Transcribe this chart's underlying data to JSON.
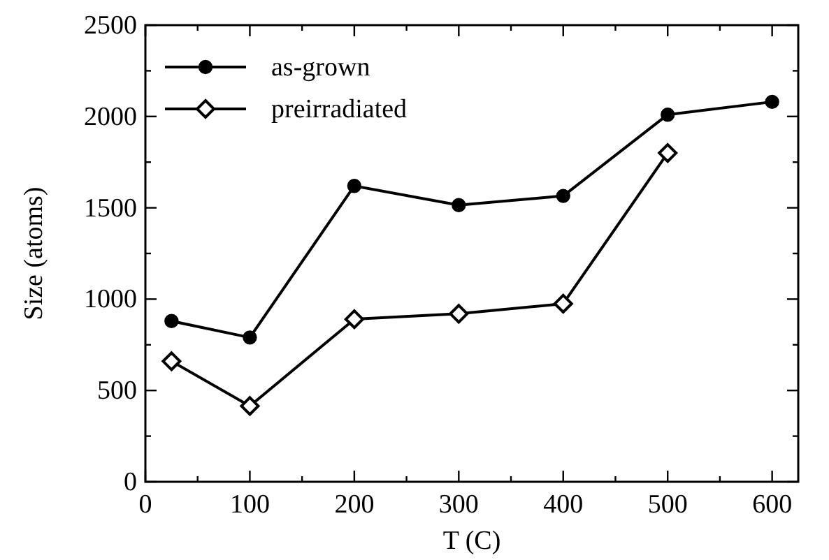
{
  "chart_data": {
    "type": "line",
    "xlabel": "T (C)",
    "ylabel": "Size (atoms)",
    "xlim": [
      0,
      625
    ],
    "ylim": [
      0,
      2500
    ],
    "xticks": [
      0,
      {
        "value": 50,
        "label": null
      },
      100,
      {
        "value": 150,
        "label": null
      },
      200,
      {
        "value": 250,
        "label": null
      },
      300,
      {
        "value": 350,
        "label": null
      },
      400,
      {
        "value": 450,
        "label": null
      },
      500,
      {
        "value": 550,
        "label": null
      },
      600
    ],
    "yticks": [
      0,
      {
        "value": 250,
        "label": null
      },
      500,
      {
        "value": 750,
        "label": null
      },
      1000,
      {
        "value": 1250,
        "label": null
      },
      1500,
      {
        "value": 1750,
        "label": null
      },
      2000,
      {
        "value": 2250,
        "label": null
      },
      2500
    ],
    "legend": "top left",
    "grid": false,
    "line_style": "solid",
    "series": [
      {
        "name": "as-grown",
        "color": "#000000",
        "marker": "circle",
        "x": [
          25,
          100,
          200,
          300,
          400,
          500,
          600
        ],
        "values": [
          880,
          790,
          1620,
          1515,
          1565,
          2010,
          2080
        ]
      },
      {
        "name": "preirradiated",
        "color": "#000000",
        "marker": "diamond",
        "x": [
          25,
          100,
          200,
          300,
          400,
          500
        ],
        "values": [
          660,
          415,
          890,
          920,
          975,
          1800
        ]
      }
    ]
  }
}
